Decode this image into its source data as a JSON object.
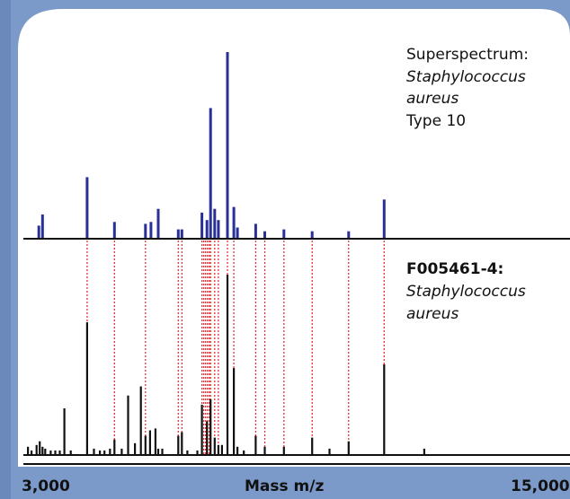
{
  "colors": {
    "frame": "#7b9ac9",
    "frame_dark": "#6b8abb",
    "top_series": "#2a2f96",
    "bottom_series": "#111111",
    "match_line": "#e8323a",
    "axis": "#111111"
  },
  "top_label": {
    "line1": "Superspectrum:",
    "line2": "Staphylococcus",
    "line3": "aureus",
    "line4": "Type 10"
  },
  "bottom_label": {
    "line1": "F005461-4:",
    "line2": "Staphylococcus",
    "line3": "aureus"
  },
  "chart_data": {
    "type": "bar",
    "xlabel": "Mass m/z",
    "xlim": [
      3000,
      15000
    ],
    "x_tick_labels": [
      "3,000",
      "15,000"
    ],
    "series": [
      {
        "name": "Superspectrum: Staphylococcus aureus Type 10",
        "x": [
          3340,
          3420,
          4400,
          5000,
          5680,
          5800,
          5960,
          6400,
          6480,
          6920,
          7030,
          7110,
          7200,
          7280,
          7480,
          7620,
          7700,
          8100,
          8300,
          8720,
          9340,
          10140,
          10920
        ],
        "values": [
          7,
          13,
          33,
          9,
          8,
          9,
          16,
          5,
          5,
          14,
          10,
          70,
          16,
          10,
          100,
          17,
          6,
          8,
          4,
          5,
          4,
          4,
          21
        ]
      },
      {
        "name": "F005461-4: Staphylococcus aureus",
        "x": [
          3100,
          3180,
          3290,
          3360,
          3420,
          3480,
          3600,
          3700,
          3800,
          3900,
          4040,
          4400,
          4550,
          4680,
          4780,
          4900,
          5000,
          5160,
          5300,
          5450,
          5580,
          5680,
          5780,
          5900,
          5960,
          6050,
          6400,
          6480,
          6600,
          6820,
          6920,
          7030,
          7110,
          7200,
          7280,
          7360,
          7480,
          7620,
          7700,
          7840,
          8100,
          8300,
          8720,
          9340,
          9720,
          10140,
          10920,
          11800
        ],
        "values": [
          4,
          2,
          5,
          7,
          4,
          3,
          2,
          2,
          2,
          25,
          2,
          72,
          3,
          2,
          2,
          3,
          8,
          3,
          32,
          6,
          37,
          10,
          13,
          14,
          3,
          3,
          10,
          12,
          2,
          2,
          27,
          18,
          30,
          9,
          5,
          5,
          98,
          47,
          4,
          2,
          10,
          4,
          4,
          9,
          3,
          7,
          49,
          3
        ]
      }
    ],
    "matched_peaks_x": [
      4400,
      5000,
      5680,
      6400,
      6480,
      6920,
      6960,
      7000,
      7040,
      7080,
      7110,
      7200,
      7280,
      7480,
      7620,
      8100,
      8300,
      8720,
      9340,
      10140,
      10920
    ],
    "axis": {
      "grid": false,
      "legend": "none"
    }
  }
}
